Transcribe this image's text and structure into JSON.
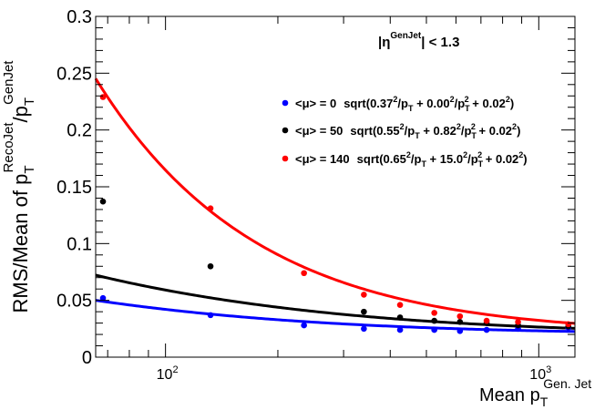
{
  "chart_data": {
    "type": "scatter",
    "x_scale": "log",
    "xlim": [
      65,
      1250
    ],
    "ylim": [
      0,
      0.3
    ],
    "y_ticks": [
      0,
      0.05,
      0.1,
      0.15,
      0.2,
      0.25,
      0.3
    ],
    "y_tick_labels": [
      "0",
      "0.05",
      "0.1",
      "0.15",
      "0.2",
      "0.25",
      "0.3"
    ],
    "x_tick_labels": [
      {
        "value": 100,
        "base": "10",
        "exp": "2"
      },
      {
        "value": 1000,
        "base": "10",
        "exp": "3"
      }
    ],
    "ylabel": {
      "p1": "RMS/Mean of p",
      "sub1": "T",
      "sup1": "RecoJet",
      "p2": "/p",
      "sub2": "T",
      "sup2": "GenJet"
    },
    "xlabel": {
      "main": "Mean p",
      "sub": "T",
      "sup": "Gen. Jet"
    },
    "annotation": {
      "pre": "|η",
      "sup": "GenJet",
      "post": "| < 1.3"
    },
    "series": [
      {
        "name": "<μ> = 0",
        "color": "#0000ff",
        "fit": {
          "N": 0.0,
          "S": 0.37,
          "C": 0.02
        },
        "fit_label": {
          "mu": "<μ> = 0",
          "f1": "sqrt(0.37",
          "f2": "/p",
          "f3": " + 0.00",
          "f4": "/p",
          "f5": " + 0.02",
          "f6": ")"
        },
        "points": [
          [
            68,
            0.052
          ],
          [
            132,
            0.037
          ],
          [
            235,
            0.028
          ],
          [
            340,
            0.025
          ],
          [
            425,
            0.024
          ],
          [
            525,
            0.024
          ],
          [
            615,
            0.023
          ],
          [
            725,
            0.024
          ],
          [
            880,
            0.025
          ],
          [
            1200,
            0.026
          ]
        ]
      },
      {
        "name": "<μ> = 50",
        "color": "#000000",
        "fit": {
          "N": 0.82,
          "S": 0.55,
          "C": 0.02
        },
        "fit_label": {
          "mu": "<μ> = 50",
          "f1": "sqrt(0.55",
          "f2": "/p",
          "f3": " + 0.82",
          "f4": "/p",
          "f5": " + 0.02",
          "f6": ")"
        },
        "points": [
          [
            68,
            0.137
          ],
          [
            132,
            0.08
          ],
          [
            340,
            0.04
          ],
          [
            425,
            0.035
          ],
          [
            525,
            0.032
          ],
          [
            615,
            0.031
          ],
          [
            725,
            0.03
          ],
          [
            880,
            0.028
          ],
          [
            1200,
            0.027
          ]
        ]
      },
      {
        "name": "<μ> = 140",
        "color": "#ff0000",
        "fit": {
          "N": 15.0,
          "S": 0.65,
          "C": 0.02
        },
        "fit_label": {
          "mu": "<μ> = 140",
          "f1": "sqrt(0.65",
          "f2": "/p",
          "f3": " + 15.0",
          "f4": "/p",
          "f5": " + 0.02",
          "f6": ")"
        },
        "points": [
          [
            68,
            0.229
          ],
          [
            132,
            0.131
          ],
          [
            235,
            0.074
          ],
          [
            340,
            0.055
          ],
          [
            425,
            0.046
          ],
          [
            525,
            0.039
          ],
          [
            615,
            0.036
          ],
          [
            725,
            0.032
          ],
          [
            880,
            0.031
          ],
          [
            1200,
            0.029
          ]
        ]
      }
    ]
  }
}
